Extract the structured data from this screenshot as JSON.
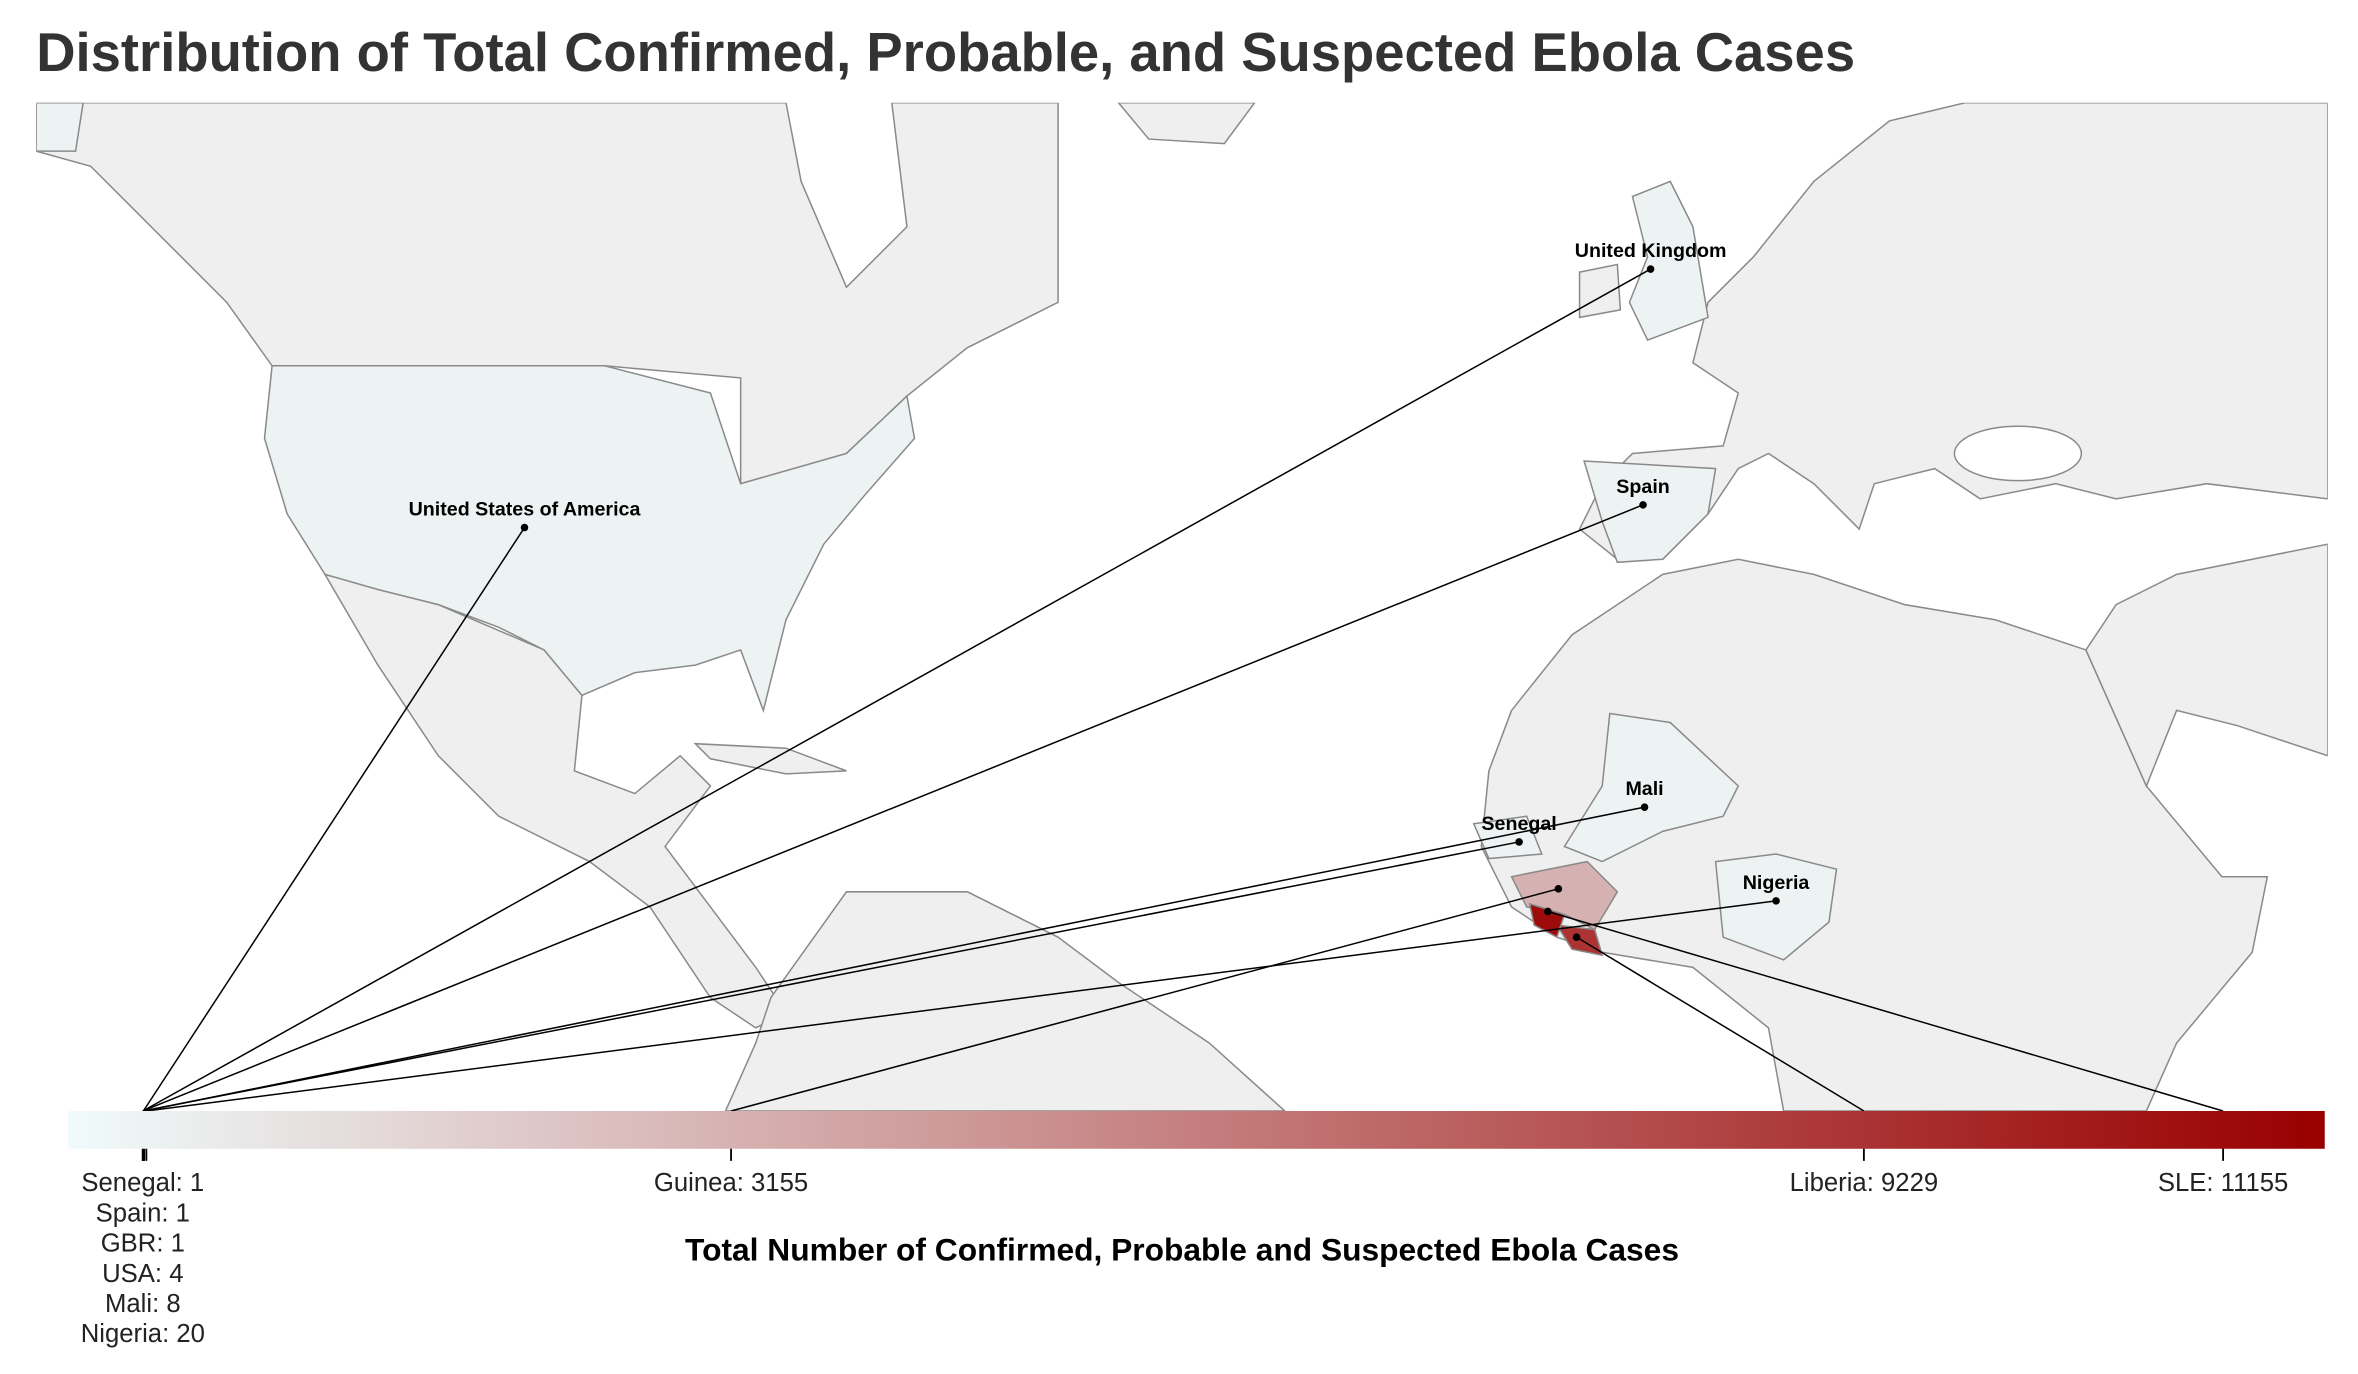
{
  "chart_data": {
    "type": "choropleth",
    "title": "Distribution of Total Confirmed, Probable, and Suspected Ebola Cases",
    "colorbar_title": "Total Number of Confirmed, Probable and Suspected Ebola Cases",
    "colorscale": [
      "#f0fbfb",
      "#990000"
    ],
    "range": [
      -400,
      11700
    ],
    "categories": [
      "Senegal",
      "Spain",
      "GBR",
      "USA",
      "Mali",
      "Nigeria",
      "Guinea",
      "Liberia",
      "SLE"
    ],
    "values": [
      1,
      1,
      1,
      4,
      8,
      20,
      3155,
      9229,
      11155
    ],
    "value_labels": [
      "Senegal: 1",
      "Spain: 1",
      "GBR: 1",
      "USA: 4",
      "Mali: 8",
      "Nigeria: 20",
      "Guinea: 3155",
      "Liberia: 9229",
      "SLE: 11155"
    ],
    "map_labels": [
      "Senegal",
      "Spain",
      "United Kingdom",
      "United States of America",
      "Mali",
      "Nigeria"
    ]
  }
}
